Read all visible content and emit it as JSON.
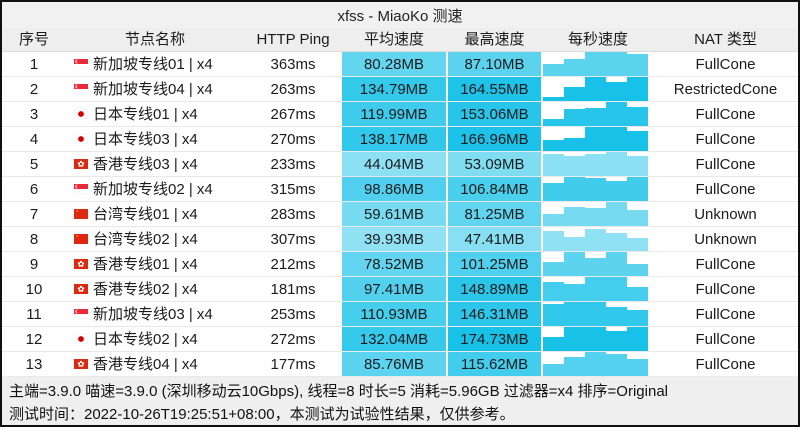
{
  "title": "xfss - MiaoKo 测速",
  "colors": {
    "accent_cyan_rgb": [
      23,
      193,
      232
    ],
    "titlebar_bg": "#f1f1f1",
    "header_bg": "#eeeeee",
    "footer_bg": "#efefef",
    "window_border": "#101010"
  },
  "table": {
    "headers": [
      "序号",
      "节点名称",
      "HTTP Ping",
      "平均速度",
      "最高速度",
      "每秒速度",
      "NAT 类型"
    ],
    "max_speed_mb": 174.73,
    "rows": [
      {
        "index": "1",
        "flag": "sg",
        "name": "新加坡专线01 | x4",
        "ping": "363ms",
        "avg": "80.28MB",
        "max": "87.10MB",
        "nat": "FullCone",
        "bars": [
          0.5,
          0.7,
          1,
          1,
          0.9
        ]
      },
      {
        "index": "2",
        "flag": "sg",
        "name": "新加坡专线04 | x4",
        "ping": "263ms",
        "avg": "134.79MB",
        "max": "164.55MB",
        "nat": "RestrictedCone",
        "bars": [
          0.15,
          0.6,
          1,
          0.8,
          1
        ]
      },
      {
        "index": "3",
        "flag": "jp",
        "name": "日本专线01 | x4",
        "ping": "267ms",
        "avg": "119.99MB",
        "max": "153.06MB",
        "nat": "FullCone",
        "bars": [
          0.3,
          0.7,
          0.75,
          1,
          0.8
        ]
      },
      {
        "index": "4",
        "flag": "jp",
        "name": "日本专线03 | x4",
        "ping": "270ms",
        "avg": "138.17MB",
        "max": "166.96MB",
        "nat": "FullCone",
        "bars": [
          0.45,
          0.55,
          1,
          1,
          0.85
        ]
      },
      {
        "index": "5",
        "flag": "hk",
        "name": "香港专线03 | x4",
        "ping": "233ms",
        "avg": "44.04MB",
        "max": "53.09MB",
        "nat": "FullCone",
        "bars": [
          0.9,
          0.85,
          0.9,
          1,
          0.85
        ]
      },
      {
        "index": "6",
        "flag": "sg",
        "name": "新加坡专线02 | x4",
        "ping": "315ms",
        "avg": "98.86MB",
        "max": "106.84MB",
        "nat": "FullCone",
        "bars": [
          0.75,
          1,
          0.95,
          0.85,
          1
        ]
      },
      {
        "index": "7",
        "flag": "cn",
        "name": "台湾专线01 | x4",
        "ping": "283ms",
        "avg": "59.61MB",
        "max": "81.25MB",
        "nat": "Unknown",
        "bars": [
          0.5,
          0.8,
          0.75,
          1,
          0.65
        ]
      },
      {
        "index": "8",
        "flag": "cn",
        "name": "台湾专线02 | x4",
        "ping": "307ms",
        "avg": "39.93MB",
        "max": "47.41MB",
        "nat": "Unknown",
        "bars": [
          0.85,
          0.6,
          0.9,
          0.75,
          0.55
        ]
      },
      {
        "index": "9",
        "flag": "hk",
        "name": "香港专线01 | x4",
        "ping": "212ms",
        "avg": "78.52MB",
        "max": "101.25MB",
        "nat": "FullCone",
        "bars": [
          0.6,
          1,
          0.75,
          1,
          0.5
        ]
      },
      {
        "index": "10",
        "flag": "hk",
        "name": "香港专线02 | x4",
        "ping": "181ms",
        "avg": "97.41MB",
        "max": "148.89MB",
        "nat": "FullCone",
        "bars": [
          0.8,
          0.7,
          1,
          1,
          0.6
        ]
      },
      {
        "index": "11",
        "flag": "sg",
        "name": "新加坡专线03 | x4",
        "ping": "253ms",
        "avg": "110.93MB",
        "max": "146.31MB",
        "nat": "FullCone",
        "bars": [
          0.9,
          1,
          1,
          0.8,
          0.65
        ]
      },
      {
        "index": "12",
        "flag": "jp",
        "name": "日本专线02 | x4",
        "ping": "272ms",
        "avg": "132.04MB",
        "max": "174.73MB",
        "nat": "FullCone",
        "bars": [
          0.6,
          1,
          1,
          0.85,
          1
        ]
      },
      {
        "index": "13",
        "flag": "hk",
        "name": "香港专线04 | x4",
        "ping": "177ms",
        "avg": "85.76MB",
        "max": "115.62MB",
        "nat": "FullCone",
        "bars": [
          0.5,
          0.8,
          1,
          0.9,
          0.7
        ]
      }
    ]
  },
  "footer": {
    "line1": "主端=3.9.0 喵速=3.9.0 (深圳移动云10Gbps), 线程=8 时长=5 消耗=5.96GB 过滤器=x4 排序=Original",
    "line2": "测试时间：2022-10-26T19:25:51+08:00，本测试为试验性结果，仅供参考。"
  }
}
